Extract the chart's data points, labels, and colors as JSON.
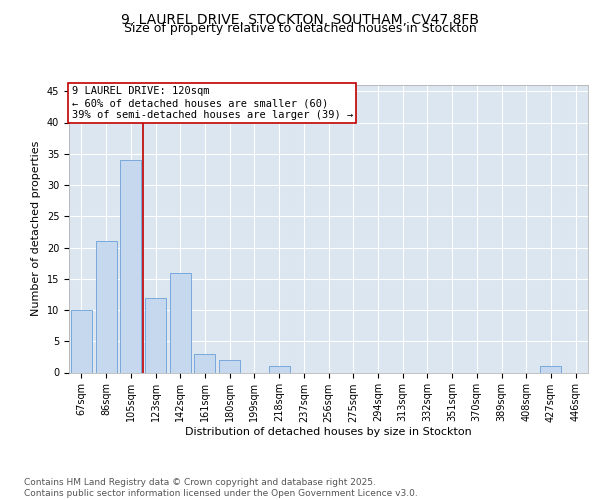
{
  "title_line1": "9, LAUREL DRIVE, STOCKTON, SOUTHAM, CV47 8FB",
  "title_line2": "Size of property relative to detached houses in Stockton",
  "xlabel": "Distribution of detached houses by size in Stockton",
  "ylabel": "Number of detached properties",
  "categories": [
    "67sqm",
    "86sqm",
    "105sqm",
    "123sqm",
    "142sqm",
    "161sqm",
    "180sqm",
    "199sqm",
    "218sqm",
    "237sqm",
    "256sqm",
    "275sqm",
    "294sqm",
    "313sqm",
    "332sqm",
    "351sqm",
    "370sqm",
    "389sqm",
    "408sqm",
    "427sqm",
    "446sqm"
  ],
  "values": [
    10,
    21,
    34,
    12,
    16,
    3,
    2,
    0,
    1,
    0,
    0,
    0,
    0,
    0,
    0,
    0,
    0,
    0,
    0,
    1,
    0
  ],
  "bar_color": "#c5d8ee",
  "bar_edge_color": "#6a9fd8",
  "vline_x": 2.5,
  "vline_color": "#c00000",
  "annotation_text": "9 LAUREL DRIVE: 120sqm\n← 60% of detached houses are smaller (60)\n39% of semi-detached houses are larger (39) →",
  "annotation_box_color": "#ffffff",
  "annotation_box_edge": "#c00000",
  "ylim": [
    0,
    46
  ],
  "yticks": [
    0,
    5,
    10,
    15,
    20,
    25,
    30,
    35,
    40,
    45
  ],
  "background_color": "#dce6f1",
  "footer_text": "Contains HM Land Registry data © Crown copyright and database right 2025.\nContains public sector information licensed under the Open Government Licence v3.0.",
  "title_fontsize": 10,
  "subtitle_fontsize": 9,
  "axis_label_fontsize": 8,
  "tick_fontsize": 7,
  "annotation_fontsize": 7.5,
  "footer_fontsize": 6.5
}
